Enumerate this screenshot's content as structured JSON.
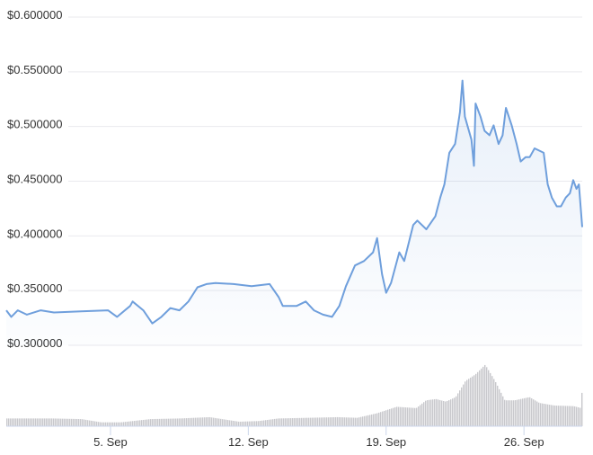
{
  "chart_data": {
    "type": "line",
    "title": "",
    "xlabel": "",
    "ylabel": "",
    "ylim": [
      0.3,
      0.6
    ],
    "y_ticks": [
      "$0.600000",
      "$0.550000",
      "$0.500000",
      "$0.450000",
      "$0.400000",
      "$0.350000",
      "$0.300000"
    ],
    "y_tick_values": [
      0.6,
      0.55,
      0.5,
      0.45,
      0.4,
      0.35,
      0.3
    ],
    "x_ticks": [
      "5. Sep",
      "12. Sep",
      "19. Sep",
      "26. Sep"
    ],
    "x_tick_dates": [
      "09-05 00:00",
      "09-12 00:00",
      "09-19 00:00",
      "09-26 00:00"
    ],
    "xlim": [
      "08-30 17:00",
      "09-28 23:00"
    ],
    "grid": true,
    "line_color": "#6f9fdc",
    "volume_color": "#c8c8cc",
    "price_series": [
      [
        "08-30 17:00",
        0.332
      ],
      [
        "08-30 23:00",
        0.326
      ],
      [
        "08-31 07:00",
        0.332
      ],
      [
        "08-31 18:00",
        0.328
      ],
      [
        "09-01 11:00",
        0.332
      ],
      [
        "09-02 03:00",
        0.33
      ],
      [
        "09-03 12:00",
        0.331
      ],
      [
        "09-04 21:00",
        0.332
      ],
      [
        "09-05 08:00",
        0.326
      ],
      [
        "09-06 00:00",
        0.336
      ],
      [
        "09-06 03:00",
        0.34
      ],
      [
        "09-06 16:00",
        0.332
      ],
      [
        "09-07 03:00",
        0.32
      ],
      [
        "09-07 14:00",
        0.326
      ],
      [
        "09-08 01:00",
        0.334
      ],
      [
        "09-08 12:00",
        0.332
      ],
      [
        "09-08 23:00",
        0.34
      ],
      [
        "09-09 10:00",
        0.353
      ],
      [
        "09-09 21:00",
        0.356
      ],
      [
        "09-10 08:00",
        0.357
      ],
      [
        "09-11 06:00",
        0.356
      ],
      [
        "09-12 04:00",
        0.354
      ],
      [
        "09-13 02:00",
        0.356
      ],
      [
        "09-13 13:00",
        0.344
      ],
      [
        "09-13 18:00",
        0.336
      ],
      [
        "09-14 11:00",
        0.336
      ],
      [
        "09-14 22:00",
        0.34
      ],
      [
        "09-15 08:00",
        0.332
      ],
      [
        "09-15 19:00",
        0.328
      ],
      [
        "09-16 06:00",
        0.326
      ],
      [
        "09-16 15:00",
        0.336
      ],
      [
        "09-16 23:00",
        0.354
      ],
      [
        "09-17 10:00",
        0.373
      ],
      [
        "09-17 21:00",
        0.377
      ],
      [
        "09-18 08:00",
        0.385
      ],
      [
        "09-18 13:00",
        0.398
      ],
      [
        "09-18 19:00",
        0.365
      ],
      [
        "09-19 00:00",
        0.348
      ],
      [
        "09-19 06:00",
        0.357
      ],
      [
        "09-19 16:00",
        0.385
      ],
      [
        "09-19 22:00",
        0.377
      ],
      [
        "09-20 09:00",
        0.41
      ],
      [
        "09-20 14:00",
        0.414
      ],
      [
        "09-21 01:00",
        0.406
      ],
      [
        "09-21 12:00",
        0.418
      ],
      [
        "09-21 18:00",
        0.435
      ],
      [
        "09-21 23:00",
        0.447
      ],
      [
        "09-22 05:00",
        0.476
      ],
      [
        "09-22 12:00",
        0.484
      ],
      [
        "09-22 18:00",
        0.513
      ],
      [
        "09-22 21:00",
        0.542
      ],
      [
        "09-23 00:00",
        0.509
      ],
      [
        "09-23 08:00",
        0.488
      ],
      [
        "09-23 11:00",
        0.464
      ],
      [
        "09-23 13:00",
        0.521
      ],
      [
        "09-23 19:00",
        0.509
      ],
      [
        "09-24 00:00",
        0.496
      ],
      [
        "09-24 06:00",
        0.492
      ],
      [
        "09-24 11:00",
        0.501
      ],
      [
        "09-24 17:00",
        0.484
      ],
      [
        "09-24 22:00",
        0.492
      ],
      [
        "09-25 02:00",
        0.517
      ],
      [
        "09-25 09:00",
        0.501
      ],
      [
        "09-25 15:00",
        0.484
      ],
      [
        "09-25 20:00",
        0.468
      ],
      [
        "09-26 02:00",
        0.472
      ],
      [
        "09-26 07:00",
        0.472
      ],
      [
        "09-26 13:00",
        0.48
      ],
      [
        "09-27 00:00",
        0.476
      ],
      [
        "09-27 05:00",
        0.447
      ],
      [
        "09-27 10:00",
        0.435
      ],
      [
        "09-27 16:00",
        0.427
      ],
      [
        "09-27 21:00",
        0.427
      ],
      [
        "09-28 03:00",
        0.435
      ],
      [
        "09-28 08:00",
        0.439
      ],
      [
        "09-28 12:00",
        0.451
      ],
      [
        "09-28 16:00",
        0.443
      ],
      [
        "09-28 19:00",
        0.447
      ],
      [
        "09-28 23:00",
        0.408
      ]
    ],
    "volume_relative": [
      [
        "08-30 17:00",
        0.12
      ],
      [
        "09-02 00:00",
        0.12
      ],
      [
        "09-03 12:00",
        0.11
      ],
      [
        "09-04 12:00",
        0.06
      ],
      [
        "09-05 12:00",
        0.06
      ],
      [
        "09-07 00:00",
        0.11
      ],
      [
        "09-08 12:00",
        0.12
      ],
      [
        "09-10 00:00",
        0.14
      ],
      [
        "09-11 12:00",
        0.07
      ],
      [
        "09-12 12:00",
        0.08
      ],
      [
        "09-13 12:00",
        0.12
      ],
      [
        "09-15 00:00",
        0.13
      ],
      [
        "09-16 12:00",
        0.14
      ],
      [
        "09-17 12:00",
        0.13
      ],
      [
        "09-18 12:00",
        0.2
      ],
      [
        "09-19 12:00",
        0.3
      ],
      [
        "09-20 12:00",
        0.28
      ],
      [
        "09-21 00:00",
        0.4
      ],
      [
        "09-21 12:00",
        0.42
      ],
      [
        "09-22 00:00",
        0.38
      ],
      [
        "09-22 12:00",
        0.45
      ],
      [
        "09-23 00:00",
        0.7
      ],
      [
        "09-23 12:00",
        0.8
      ],
      [
        "09-24 00:00",
        0.95
      ],
      [
        "09-24 12:00",
        0.7
      ],
      [
        "09-25 00:00",
        0.4
      ],
      [
        "09-25 12:00",
        0.4
      ],
      [
        "09-26 06:00",
        0.45
      ],
      [
        "09-26 18:00",
        0.36
      ],
      [
        "09-27 12:00",
        0.32
      ],
      [
        "09-28 12:00",
        0.31
      ],
      [
        "09-28 21:00",
        0.28
      ],
      [
        "09-28 23:00",
        0.8
      ]
    ]
  }
}
